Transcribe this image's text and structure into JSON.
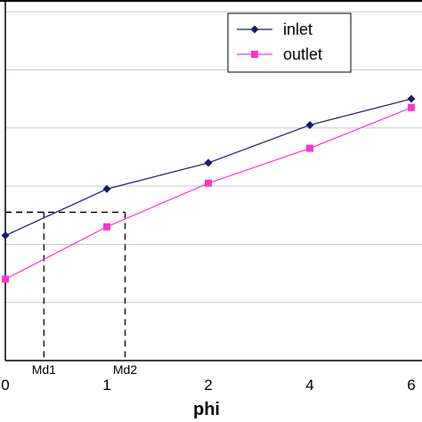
{
  "chart_data": {
    "type": "line",
    "title": "",
    "xlabel": "phi",
    "ylabel": "",
    "categories": [
      "0",
      "1",
      "2",
      "4",
      "6"
    ],
    "series": [
      {
        "name": "inlet",
        "color": "#1a1a6e",
        "marker": "diamond",
        "values": [
          2.15,
          2.95,
          3.4,
          4.05,
          4.5
        ]
      },
      {
        "name": "outlet",
        "color": "#ff33cc",
        "marker": "square",
        "values": [
          1.4,
          2.3,
          3.05,
          3.65,
          4.35
        ]
      }
    ],
    "ylim": [
      0,
      6.2
    ],
    "grid": "horizontal",
    "legend_position": "top-right",
    "annotations": [
      {
        "label": "Md1",
        "x_category_pos": 0.38,
        "y": 2.55
      },
      {
        "label": "Md2",
        "x_category_pos": 1.18,
        "y": 2.55
      }
    ]
  }
}
